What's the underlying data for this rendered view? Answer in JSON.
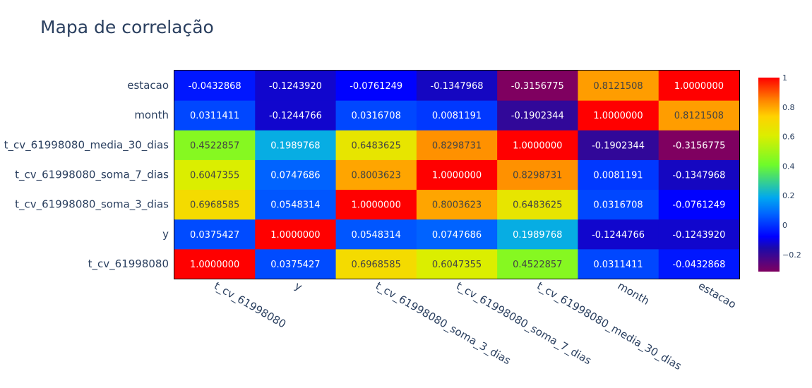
{
  "chart_data": {
    "type": "heatmap",
    "title": "Mapa de correlação",
    "x": [
      "t_cv_61998080",
      "y",
      "t_cv_61998080_soma_3_dias",
      "t_cv_61998080_soma_7_dias",
      "t_cv_61998080_media_30_dias",
      "month",
      "estacao"
    ],
    "y": [
      "t_cv_61998080",
      "y",
      "t_cv_61998080_soma_3_dias",
      "t_cv_61998080_soma_7_dias",
      "t_cv_61998080_media_30_dias",
      "month",
      "estacao"
    ],
    "z": [
      [
        1.0,
        0.0375427,
        0.6968585,
        0.6047355,
        0.4522857,
        0.0311411,
        -0.0432868
      ],
      [
        0.0375427,
        1.0,
        0.0548314,
        0.0747686,
        0.1989768,
        -0.1244766,
        -0.124392
      ],
      [
        0.6968585,
        0.0548314,
        1.0,
        0.8003623,
        0.6483625,
        0.0316708,
        -0.0761249
      ],
      [
        0.6047355,
        0.0747686,
        0.8003623,
        1.0,
        0.8298731,
        0.0081191,
        -0.1347968
      ],
      [
        0.4522857,
        0.1989768,
        0.6483625,
        0.8298731,
        1.0,
        -0.1902344,
        -0.3156775
      ],
      [
        0.0311411,
        -0.1244766,
        0.0316708,
        0.0081191,
        -0.1902344,
        1.0,
        0.8121508
      ],
      [
        -0.0432868,
        -0.124392,
        -0.0761249,
        -0.1347968,
        -0.3156775,
        0.8121508,
        1.0
      ]
    ],
    "zmin": -0.3156775,
    "zmax": 1.0,
    "colorscale": [
      [
        0.0,
        "#7f0060"
      ],
      [
        0.12,
        "#1d0aa8"
      ],
      [
        0.18,
        "#0000ff"
      ],
      [
        0.3,
        "#0066ff"
      ],
      [
        0.38,
        "#00a7f0"
      ],
      [
        0.55,
        "#6efb2a"
      ],
      [
        0.7,
        "#dbee00"
      ],
      [
        0.8,
        "#ffd200"
      ],
      [
        0.88,
        "#ff8800"
      ],
      [
        1.0,
        "#ff0000"
      ]
    ],
    "colorbar_ticks": [
      "1",
      "0.8",
      "0.6",
      "0.4",
      "0.2",
      "0",
      "−0.2"
    ],
    "colorbar_tick_values": [
      1,
      0.8,
      0.6,
      0.4,
      0.2,
      0,
      -0.2
    ]
  }
}
